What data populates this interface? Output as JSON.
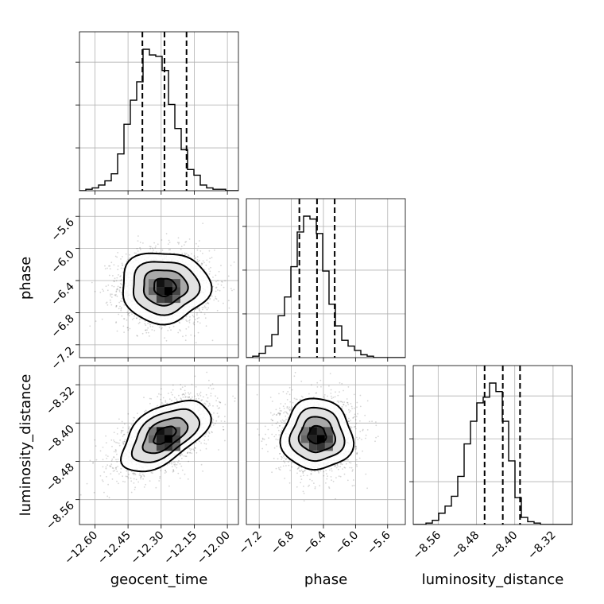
{
  "chart_data": {
    "type": "corner",
    "parameters": [
      "geocent_time",
      "phase",
      "luminosity_distance"
    ],
    "axis_labels": {
      "geocent_time": "geocent_time",
      "phase": "phase",
      "luminosity_distance": "luminosity_distance"
    },
    "ranges": {
      "geocent_time": [
        -12.67,
        -11.95
      ],
      "phase": [
        -7.36,
        -5.38
      ],
      "luminosity_distance": [
        -8.612,
        -8.28
      ]
    },
    "ticks": {
      "geocent_time": [
        "−12.60",
        "−12.45",
        "−12.30",
        "−12.15",
        "−12.00"
      ],
      "phase": [
        "−7.2",
        "−6.8",
        "−6.4",
        "−6.0",
        "−5.6"
      ],
      "luminosity_distance": [
        "−8.56",
        "−8.48",
        "−8.40",
        "−8.32"
      ]
    },
    "tick_values": {
      "geocent_time": [
        -12.6,
        -12.45,
        -12.3,
        -12.15,
        -12.0
      ],
      "phase": [
        -7.2,
        -6.8,
        -6.4,
        -6.0,
        -5.6
      ],
      "luminosity_distance": [
        -8.56,
        -8.48,
        -8.4,
        -8.32
      ]
    },
    "posterior": {
      "geocent_time": {
        "median": -12.285,
        "lower": -12.385,
        "upper": -12.185,
        "sigma": 0.1
      },
      "phase": {
        "median": -6.48,
        "lower": -6.7,
        "upper": -6.26,
        "sigma": 0.22
      },
      "luminosity_distance": {
        "median": -8.425,
        "lower": -8.463,
        "upper": -8.389,
        "sigma": 0.037
      }
    },
    "histograms": {
      "geocent_time": {
        "bins": [
          -12.67,
          -11.95
        ],
        "counts": [
          0,
          1,
          2,
          4,
          7,
          12,
          26,
          47,
          64,
          77,
          100,
          96,
          95,
          85,
          61,
          44,
          29,
          15,
          11,
          4,
          2,
          1,
          1,
          0,
          0
        ]
      },
      "phase": {
        "bins": [
          -7.36,
          -5.38
        ],
        "counts": [
          0,
          1,
          3,
          8,
          16,
          29,
          42,
          63,
          87,
          98,
          96,
          86,
          60,
          37,
          22,
          12,
          8,
          5,
          2,
          1,
          0,
          0,
          0,
          0,
          0
        ]
      },
      "luminosity_distance": {
        "bins": [
          -8.612,
          -8.28
        ],
        "counts": [
          0,
          0,
          1,
          3,
          8,
          13,
          20,
          34,
          57,
          73,
          86,
          90,
          100,
          94,
          73,
          45,
          19,
          5,
          2,
          1,
          0,
          0,
          0,
          0,
          0
        ]
      }
    },
    "correlations": {
      "geocent_time|phase": 0.0,
      "geocent_time|luminosity_distance": 0.55,
      "phase|luminosity_distance": 0.0
    },
    "contour_levels_sigma": [
      0.5,
      1.0,
      1.5,
      2.0
    ],
    "grid": true
  }
}
